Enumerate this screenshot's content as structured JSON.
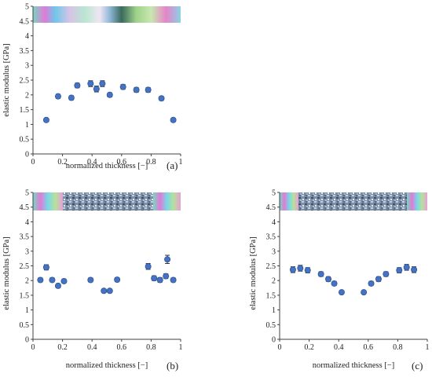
{
  "chart_data": [
    {
      "type": "scatter",
      "panel_label": "(a)",
      "xlabel": "normalized thickness [−]",
      "ylabel": "elastic modulus [GPa]",
      "xlim": [
        0,
        1
      ],
      "ylim": [
        0,
        5
      ],
      "xticks": [
        "0",
        "0.2",
        "0.4",
        "0.6",
        "0.8",
        "1"
      ],
      "yticks": [
        "0",
        "0.5",
        "1",
        "1.5",
        "2",
        "2.5",
        "3",
        "3.5",
        "4",
        "4.5",
        "5"
      ],
      "grid": false,
      "x": [
        0.09,
        0.17,
        0.26,
        0.3,
        0.39,
        0.43,
        0.47,
        0.52,
        0.61,
        0.7,
        0.78,
        0.87,
        0.95
      ],
      "y": [
        1.15,
        1.95,
        1.9,
        2.32,
        2.38,
        2.2,
        2.38,
        2.0,
        2.27,
        2.17,
        2.17,
        1.88,
        1.15
      ],
      "err": [
        0.05,
        0.07,
        0.07,
        0.08,
        0.1,
        0.1,
        0.1,
        0.07,
        0.08,
        0.08,
        0.08,
        0.07,
        0.05
      ]
    },
    {
      "type": "scatter",
      "panel_label": "(b)",
      "xlabel": "normalized thickness [−]",
      "ylabel": "elastic modulus [GPa]",
      "xlim": [
        0,
        1
      ],
      "ylim": [
        0,
        5
      ],
      "xticks": [
        "0",
        "0.2",
        "0.4",
        "0.6",
        "0.8",
        "1"
      ],
      "yticks": [
        "0",
        "0.5",
        "1",
        "1.5",
        "2",
        "2.5",
        "3",
        "3.5",
        "4",
        "4.5",
        "5"
      ],
      "grid": false,
      "x": [
        0.05,
        0.09,
        0.13,
        0.17,
        0.21,
        0.39,
        0.48,
        0.52,
        0.57,
        0.78,
        0.82,
        0.86,
        0.9,
        0.91,
        0.95
      ],
      "y": [
        2.02,
        2.45,
        2.02,
        1.82,
        1.98,
        2.02,
        1.65,
        1.65,
        2.03,
        2.48,
        2.08,
        2.02,
        2.15,
        2.72,
        2.02
      ],
      "err": [
        0.07,
        0.09,
        0.07,
        0.07,
        0.07,
        0.07,
        0.06,
        0.06,
        0.07,
        0.1,
        0.08,
        0.08,
        0.08,
        0.14,
        0.07
      ]
    },
    {
      "type": "scatter",
      "panel_label": "(c)",
      "xlabel": "normalized thickness [−]",
      "ylabel": "elastic modulus [GPa]",
      "xlim": [
        0,
        1
      ],
      "ylim": [
        0,
        5
      ],
      "xticks": [
        "0",
        "0.2",
        "0.4",
        "0.6",
        "0.8",
        "1"
      ],
      "yticks": [
        "0",
        "0.5",
        "1",
        "1.5",
        "2",
        "2.5",
        "3",
        "3.5",
        "4",
        "4.5",
        "5"
      ],
      "grid": false,
      "x": [
        0.09,
        0.14,
        0.19,
        0.28,
        0.33,
        0.37,
        0.42,
        0.57,
        0.62,
        0.67,
        0.72,
        0.81,
        0.86,
        0.91
      ],
      "y": [
        2.37,
        2.42,
        2.35,
        2.22,
        2.05,
        1.9,
        1.6,
        1.6,
        1.9,
        2.05,
        2.22,
        2.35,
        2.45,
        2.37
      ],
      "err": [
        0.1,
        0.1,
        0.09,
        0.08,
        0.08,
        0.07,
        0.05,
        0.05,
        0.07,
        0.08,
        0.08,
        0.09,
        0.1,
        0.1
      ]
    }
  ],
  "colors": {
    "marker_fill": "#4472c4",
    "marker_edge": "#2f5597",
    "axis": "#404040",
    "text": "#222222"
  }
}
